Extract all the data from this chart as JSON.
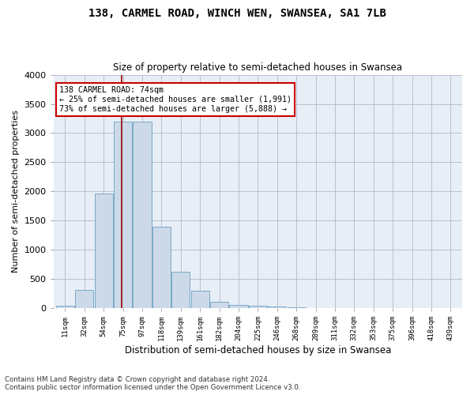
{
  "title": "138, CARMEL ROAD, WINCH WEN, SWANSEA, SA1 7LB",
  "subtitle": "Size of property relative to semi-detached houses in Swansea",
  "xlabel": "Distribution of semi-detached houses by size in Swansea",
  "ylabel": "Number of semi-detached properties",
  "bar_color": "#ccd9e8",
  "bar_edgecolor": "#7aaac8",
  "bg_color": "#e8eef6",
  "annotation_line1": "138 CARMEL ROAD: 74sqm",
  "annotation_line2": "← 25% of semi-detached houses are smaller (1,991)",
  "annotation_line3": "73% of semi-detached houses are larger (5,888) →",
  "categories": [
    "11sqm",
    "32sqm",
    "54sqm",
    "75sqm",
    "97sqm",
    "118sqm",
    "139sqm",
    "161sqm",
    "182sqm",
    "204sqm",
    "225sqm",
    "246sqm",
    "268sqm",
    "289sqm",
    "311sqm",
    "332sqm",
    "353sqm",
    "375sqm",
    "396sqm",
    "418sqm",
    "439sqm"
  ],
  "values": [
    45,
    320,
    1970,
    3200,
    3200,
    1390,
    630,
    295,
    110,
    60,
    45,
    25,
    12,
    4,
    2,
    1,
    1,
    1,
    0,
    0,
    0
  ],
  "ylim_max": 4000,
  "yticks": [
    0,
    500,
    1000,
    1500,
    2000,
    2500,
    3000,
    3500,
    4000
  ],
  "redline_idx": 2.95,
  "footnote_line1": "Contains HM Land Registry data © Crown copyright and database right 2024.",
  "footnote_line2": "Contains public sector information licensed under the Open Government Licence v3.0."
}
